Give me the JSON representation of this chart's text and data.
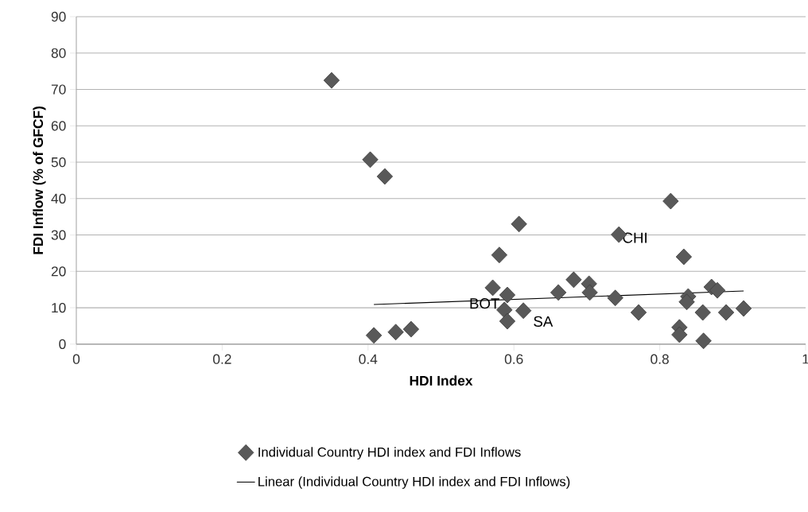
{
  "chart_data": {
    "type": "scatter",
    "xlabel": "HDI Index",
    "ylabel": "FDI Inflow (% of GFCF)",
    "xlim": [
      0,
      1
    ],
    "ylim": [
      0,
      90
    ],
    "xticks": [
      0,
      0.2,
      0.4,
      0.6,
      0.8,
      1
    ],
    "yticks": [
      0,
      10,
      20,
      30,
      40,
      50,
      60,
      70,
      80,
      90
    ],
    "grid": "y",
    "legend": "bottom",
    "series": [
      {
        "name": "Individual Country HDI index and FDI Inflows",
        "color": "#595959",
        "marker": "diamond",
        "x": [
          0.35,
          0.403,
          0.423,
          0.408,
          0.438,
          0.459,
          0.607,
          0.58,
          0.571,
          0.591,
          0.587,
          0.591,
          0.613,
          0.661,
          0.682,
          0.703,
          0.704,
          0.739,
          0.744,
          0.771,
          0.815,
          0.833,
          0.839,
          0.837,
          0.827,
          0.827,
          0.86,
          0.859,
          0.871,
          0.879,
          0.891,
          0.915
        ],
        "values": [
          72.5,
          50.7,
          46.1,
          2.4,
          3.3,
          4.1,
          33.0,
          24.5,
          15.5,
          13.5,
          9.4,
          6.3,
          9.2,
          14.2,
          17.7,
          16.6,
          14.2,
          12.7,
          30.1,
          8.7,
          39.3,
          24.0,
          13.1,
          11.6,
          4.6,
          2.6,
          0.9,
          8.7,
          15.7,
          14.8,
          8.7,
          9.8
        ]
      },
      {
        "name": "Linear (Individual Country HDI index and FDI Inflows)",
        "type": "line",
        "marker": "none",
        "color": "#000000",
        "x": [
          0.408,
          0.915
        ],
        "values": [
          10.9,
          14.6
        ]
      }
    ],
    "annotations": [
      {
        "text": "BOT",
        "x": 0.591,
        "y": 13.5
      },
      {
        "text": "CHI",
        "x": 0.744,
        "y": 30.1
      },
      {
        "text": "SA",
        "x": 0.613,
        "y": 9.2
      }
    ]
  }
}
